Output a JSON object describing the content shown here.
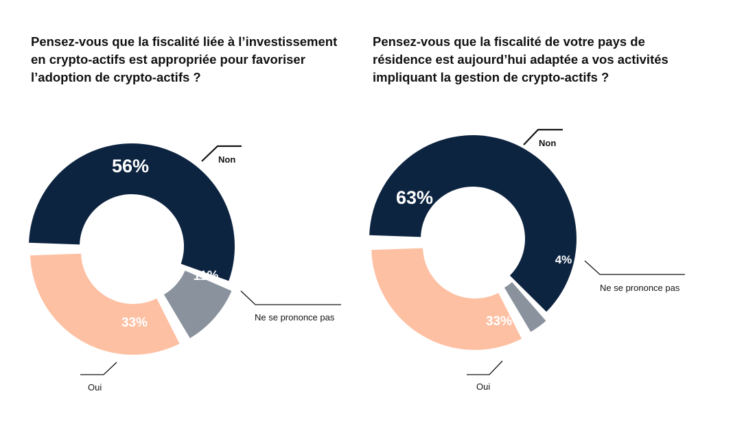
{
  "chart_data": [
    {
      "type": "pie",
      "title": "Pensez-vous que la fiscalité liée à l’investissement en crypto-actifs est appropriée pour favoriser l’adoption de crypto-actifs ?",
      "categories": [
        "Non",
        "Ne se prononce pas",
        "Oui"
      ],
      "values": [
        56,
        11,
        33
      ],
      "value_labels": [
        "56%",
        "11%",
        "33%"
      ],
      "colors": [
        "#0d2440",
        "#8a929d",
        "#fec0a3"
      ]
    },
    {
      "type": "pie",
      "title": "Pensez-vous que la fiscalité de votre pays de résidence est aujourd’hui adaptée a vos activités impliquant la gestion de crypto-actifs ?",
      "categories": [
        "Non",
        "Ne se prononce pas",
        "Oui"
      ],
      "values": [
        63,
        4,
        33
      ],
      "value_labels": [
        "63%",
        "4%",
        "33%"
      ],
      "colors": [
        "#0d2440",
        "#8a929d",
        "#fec0a3"
      ]
    }
  ]
}
